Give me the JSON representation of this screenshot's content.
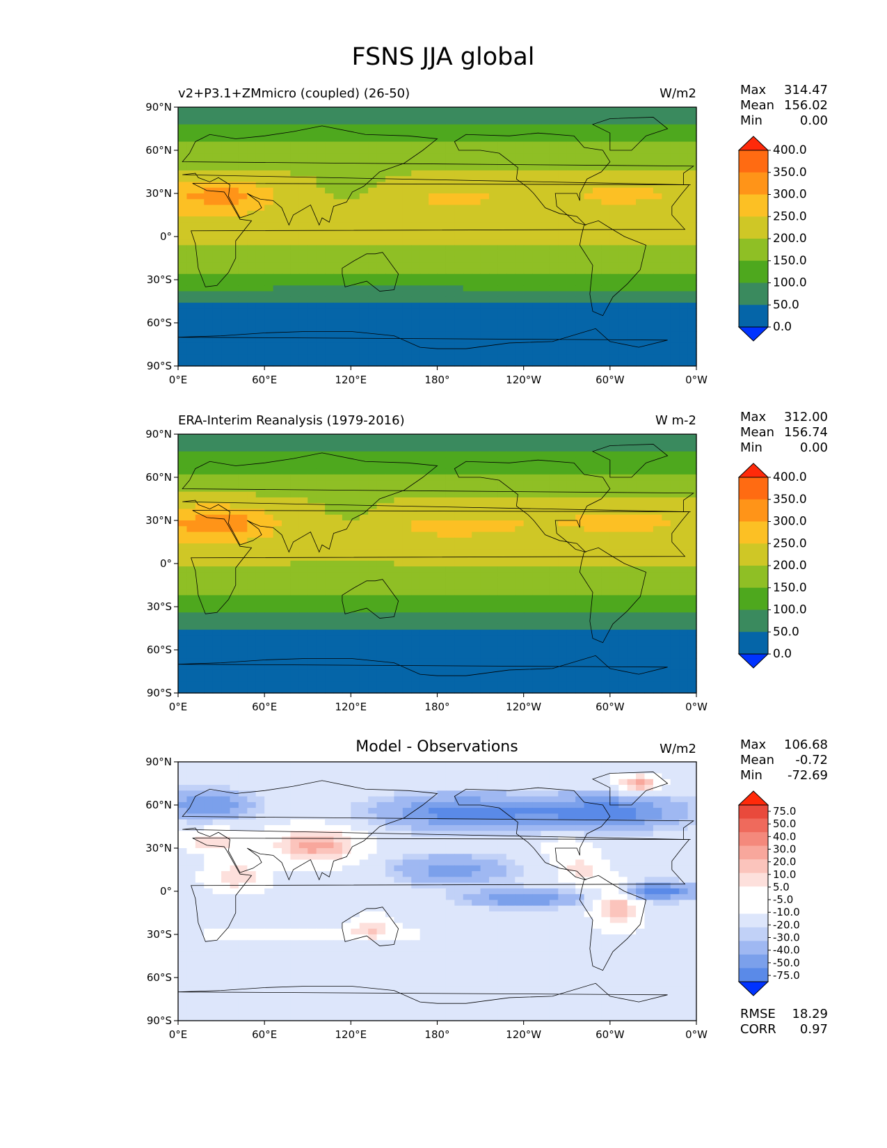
{
  "figure": {
    "title": "FSNS JJA global"
  },
  "colors": {
    "ref_scale": [
      "#0033ff",
      "#0565a8",
      "#3a8a5e",
      "#4ea81e",
      "#8fbf25",
      "#cfc726",
      "#fcc024",
      "#ff9418",
      "#ff6b12",
      "#ff2a0a"
    ],
    "diff_scale": [
      "#0033ff",
      "#1f57ff",
      "#3d73f0",
      "#5a8ae8",
      "#7ba0eb",
      "#9fb8f2",
      "#c1d1f7",
      "#dde6fb",
      "#ffffff",
      "#ffffff",
      "#fde0dc",
      "#fbc4bc",
      "#f8a79c",
      "#f4897c",
      "#ef6a5c",
      "#e94a3c",
      "#ff2a0a"
    ],
    "coast": "#000000",
    "frame": "#000000"
  },
  "chart_data": [
    {
      "id": "model",
      "type": "heatmap",
      "title": "v2+P3.1+ZMmicro (coupled) (26-50)",
      "units": "W/m2",
      "stats": [
        {
          "label": "Max",
          "value": "314.47"
        },
        {
          "label": "Mean",
          "value": "156.02"
        },
        {
          "label": "Min",
          "value": "0.00"
        }
      ],
      "colorbar_ticks": [
        "400.0",
        "350.0",
        "300.0",
        "250.0",
        "200.0",
        "150.0",
        "100.0",
        "50.0",
        "0.0"
      ],
      "colorbar_levels": [
        0,
        50,
        100,
        150,
        200,
        250,
        300,
        350,
        400
      ],
      "xticks": [
        "0°E",
        "60°E",
        "120°E",
        "180°",
        "120°W",
        "60°W",
        "0°W"
      ],
      "yticks": [
        "90°N",
        "60°N",
        "30°N",
        "0°",
        "30°S",
        "60°S",
        "90°S"
      ],
      "xlim": [
        0,
        360
      ],
      "ylim": [
        -90,
        90
      ],
      "zonal_mean": [
        {
          "lat": 90,
          "value": 75
        },
        {
          "lat": 80,
          "value": 90
        },
        {
          "lat": 70,
          "value": 135
        },
        {
          "lat": 60,
          "value": 165
        },
        {
          "lat": 50,
          "value": 185
        },
        {
          "lat": 40,
          "value": 210
        },
        {
          "lat": 30,
          "value": 230
        },
        {
          "lat": 20,
          "value": 225
        },
        {
          "lat": 10,
          "value": 215
        },
        {
          "lat": 0,
          "value": 205
        },
        {
          "lat": -10,
          "value": 195
        },
        {
          "lat": -20,
          "value": 170
        },
        {
          "lat": -30,
          "value": 130
        },
        {
          "lat": -40,
          "value": 80
        },
        {
          "lat": -50,
          "value": 40
        },
        {
          "lat": -60,
          "value": 25
        },
        {
          "lat": -70,
          "value": 15
        },
        {
          "lat": -80,
          "value": 5
        },
        {
          "lat": -90,
          "value": 0
        }
      ]
    },
    {
      "id": "obs",
      "type": "heatmap",
      "title": "ERA-Interim Reanalysis (1979-2016)",
      "units": "W m-2",
      "stats": [
        {
          "label": "Max",
          "value": "312.00"
        },
        {
          "label": "Mean",
          "value": "156.74"
        },
        {
          "label": "Min",
          "value": "0.00"
        }
      ],
      "colorbar_ticks": [
        "400.0",
        "350.0",
        "300.0",
        "250.0",
        "200.0",
        "150.0",
        "100.0",
        "50.0",
        "0.0"
      ],
      "colorbar_levels": [
        0,
        50,
        100,
        150,
        200,
        250,
        300,
        350,
        400
      ],
      "xticks": [
        "0°E",
        "60°E",
        "120°E",
        "180°",
        "120°W",
        "60°W",
        "0°W"
      ],
      "yticks": [
        "90°N",
        "60°N",
        "30°N",
        "0°",
        "30°S",
        "60°S",
        "90°S"
      ],
      "xlim": [
        0,
        360
      ],
      "ylim": [
        -90,
        90
      ],
      "zonal_mean": [
        {
          "lat": 90,
          "value": 75
        },
        {
          "lat": 80,
          "value": 90
        },
        {
          "lat": 70,
          "value": 130
        },
        {
          "lat": 60,
          "value": 160
        },
        {
          "lat": 50,
          "value": 190
        },
        {
          "lat": 40,
          "value": 215
        },
        {
          "lat": 30,
          "value": 235
        },
        {
          "lat": 20,
          "value": 230
        },
        {
          "lat": 10,
          "value": 205
        },
        {
          "lat": 0,
          "value": 200
        },
        {
          "lat": -10,
          "value": 190
        },
        {
          "lat": -20,
          "value": 165
        },
        {
          "lat": -30,
          "value": 125
        },
        {
          "lat": -40,
          "value": 80
        },
        {
          "lat": -50,
          "value": 40
        },
        {
          "lat": -60,
          "value": 25
        },
        {
          "lat": -70,
          "value": 15
        },
        {
          "lat": -80,
          "value": 5
        },
        {
          "lat": -90,
          "value": 0
        }
      ]
    },
    {
      "id": "diff",
      "type": "heatmap",
      "title": "Model - Observations",
      "units": "W/m2",
      "stats": [
        {
          "label": "Max",
          "value": "106.68"
        },
        {
          "label": "Mean",
          "value": "-0.72"
        },
        {
          "label": "Min",
          "value": "-72.69"
        }
      ],
      "colorbar_ticks": [
        "75.0",
        "50.0",
        "40.0",
        "30.0",
        "20.0",
        "10.0",
        "5.0",
        "-5.0",
        "-10.0",
        "-20.0",
        "-30.0",
        "-40.0",
        "-50.0",
        "-75.0"
      ],
      "colorbar_levels": [
        -75,
        -50,
        -40,
        -30,
        -20,
        -10,
        -5,
        5,
        10,
        20,
        30,
        40,
        50,
        75
      ],
      "xticks": [
        "0°E",
        "60°E",
        "120°E",
        "180°",
        "120°W",
        "60°W",
        "0°W"
      ],
      "yticks": [
        "90°N",
        "60°N",
        "30°N",
        "0°",
        "30°S",
        "60°S",
        "90°S"
      ],
      "xlim": [
        0,
        360
      ],
      "ylim": [
        -90,
        90
      ],
      "footer_stats": [
        {
          "label": "RMSE",
          "value": "18.29"
        },
        {
          "label": "CORR",
          "value": "0.97"
        }
      ]
    }
  ]
}
